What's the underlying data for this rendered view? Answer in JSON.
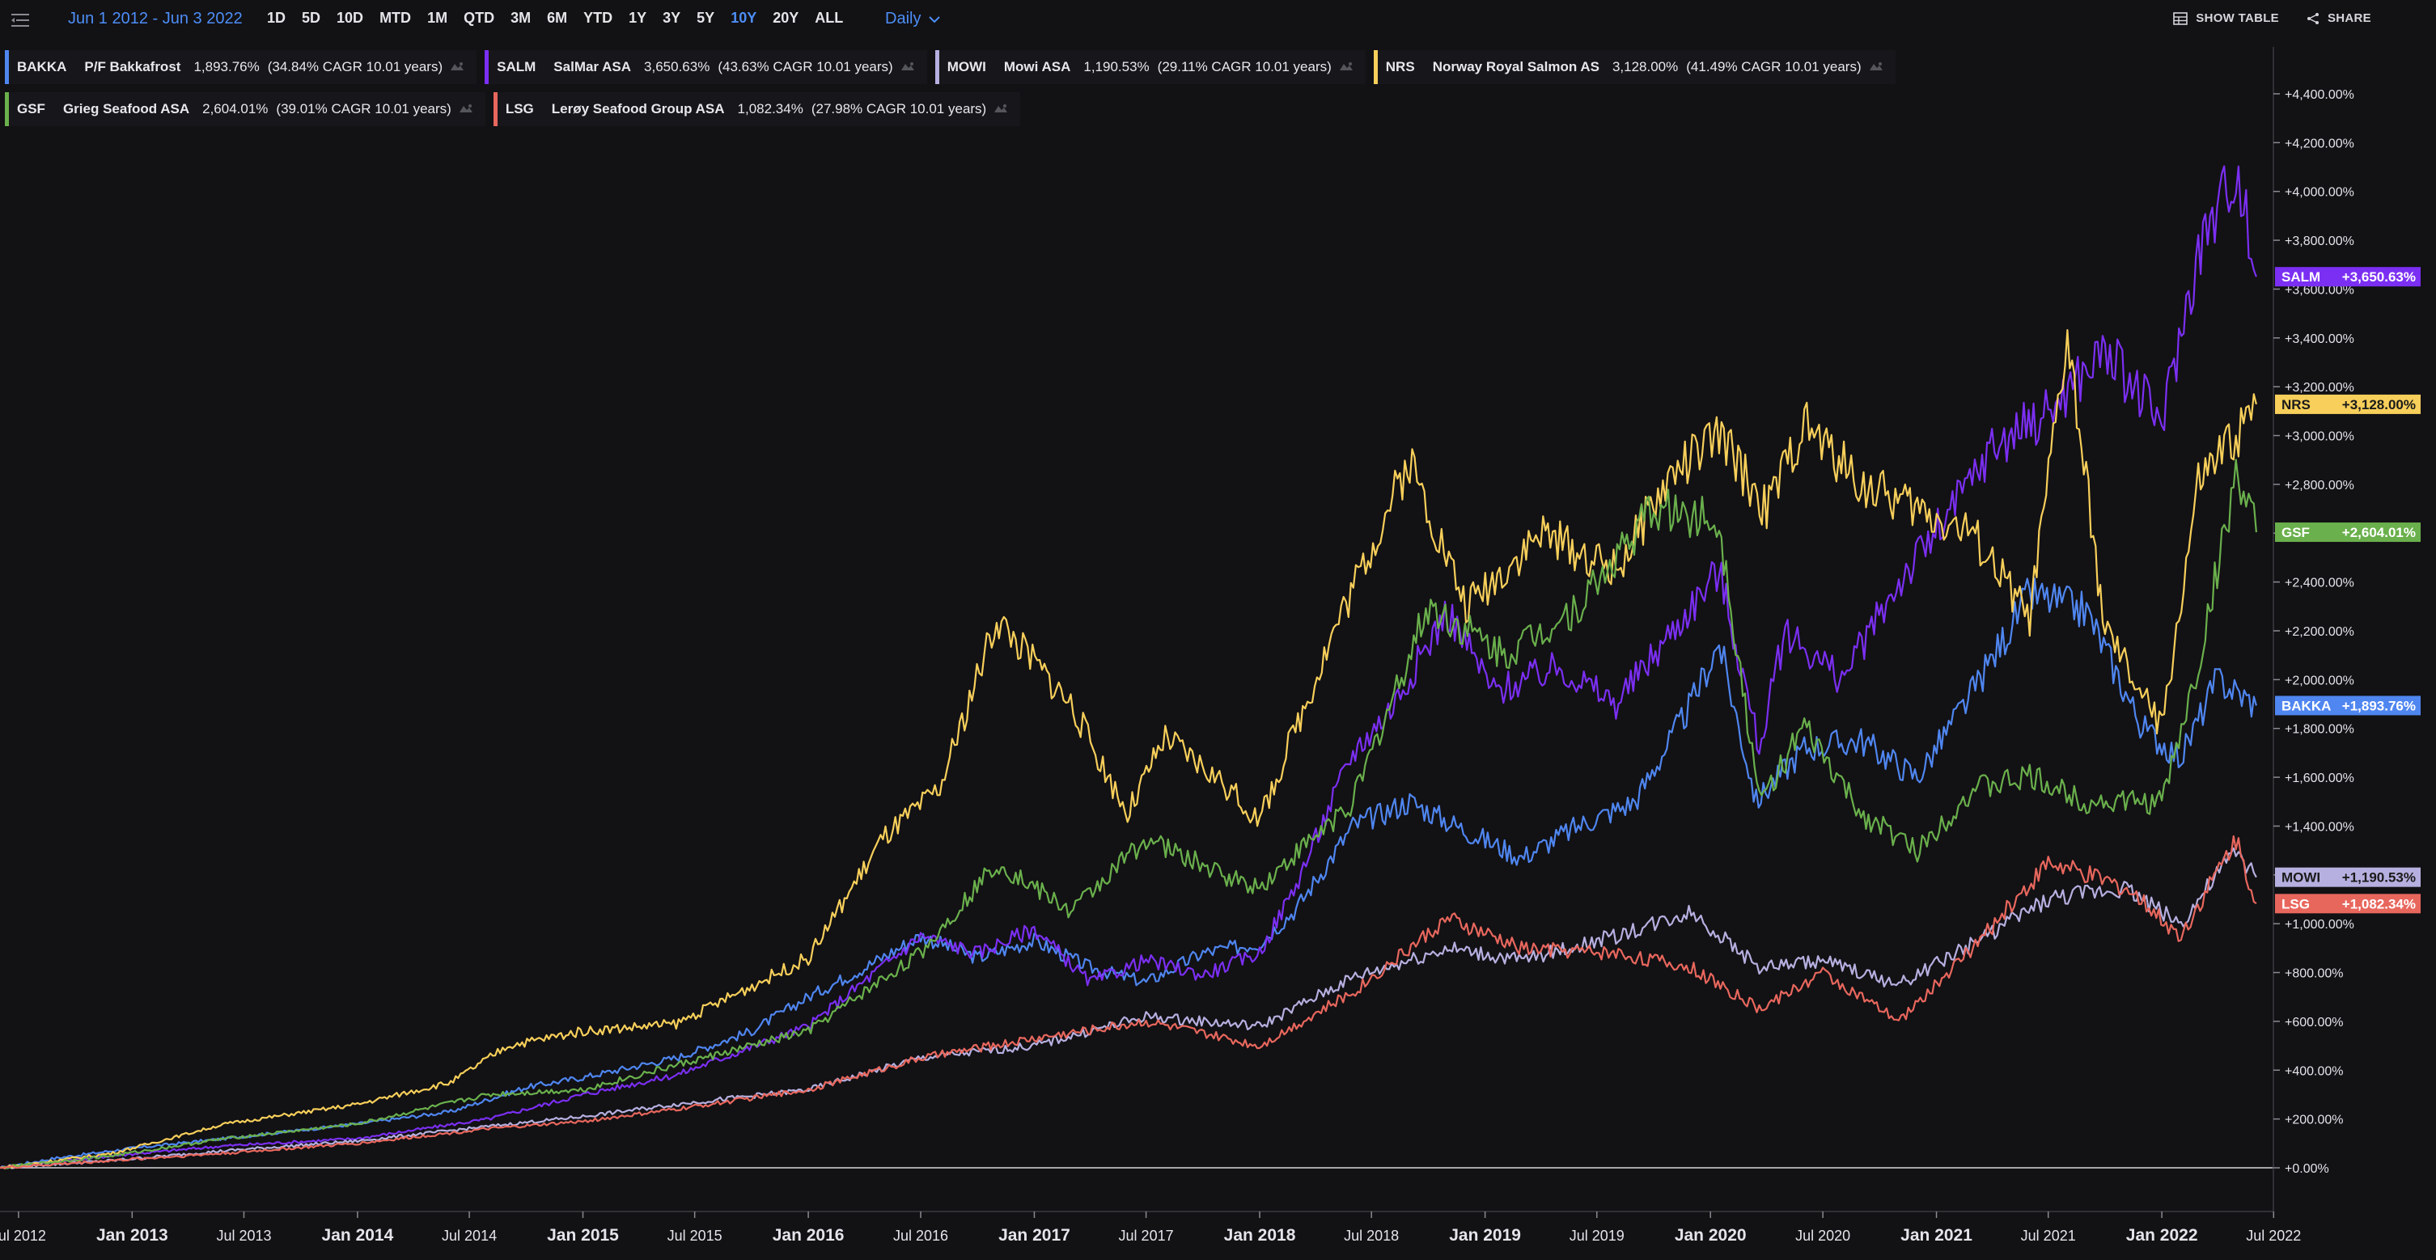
{
  "toolbar": {
    "date_range": "Jun 1 2012 - Jun 3 2022",
    "ranges": [
      "1D",
      "5D",
      "10D",
      "MTD",
      "1M",
      "QTD",
      "3M",
      "6M",
      "YTD",
      "1Y",
      "3Y",
      "5Y",
      "10Y",
      "20Y",
      "ALL"
    ],
    "active_range": "10Y",
    "interval": "Daily",
    "show_table": "SHOW TABLE",
    "share": "SHARE"
  },
  "legend": [
    {
      "symbol": "BAKKA",
      "name": "P/F Bakkafrost",
      "pct": "1,893.76%",
      "cagr": "(34.84% CAGR 10.01 years)",
      "color": "#4f86f0"
    },
    {
      "symbol": "SALM",
      "name": "SalMar ASA",
      "pct": "3,650.63%",
      "cagr": "(43.63% CAGR 10.01 years)",
      "color": "#7b2ff2"
    },
    {
      "symbol": "MOWI",
      "name": "Mowi ASA",
      "pct": "1,190.53%",
      "cagr": "(29.11% CAGR 10.01 years)",
      "color": "#b6b0e0"
    },
    {
      "symbol": "NRS",
      "name": "Norway Royal Salmon AS",
      "pct": "3,128.00%",
      "cagr": "(41.49% CAGR 10.01 years)",
      "color": "#f7cf5a"
    },
    {
      "symbol": "GSF",
      "name": "Grieg Seafood ASA",
      "pct": "2,604.01%",
      "cagr": "(39.01% CAGR 10.01 years)",
      "color": "#6ab04c"
    },
    {
      "symbol": "LSG",
      "name": "Lerøy Seafood Group ASA",
      "pct": "1,082.34%",
      "cagr": "(27.98% CAGR 10.01 years)",
      "color": "#e8675d"
    }
  ],
  "last_labels": [
    {
      "symbol": "SALM",
      "value": "+3,650.63%",
      "value_num": 3650.63,
      "color": "#7b2ff2",
      "text_color": "#ffffff"
    },
    {
      "symbol": "NRS",
      "value": "+3,128.00%",
      "value_num": 3128.0,
      "color": "#f7cf5a",
      "text_color": "#1a1a1a"
    },
    {
      "symbol": "GSF",
      "value": "+2,604.01%",
      "value_num": 2604.01,
      "color": "#6ab04c",
      "text_color": "#ffffff"
    },
    {
      "symbol": "BAKKA",
      "value": "+1,893.76%",
      "value_num": 1893.76,
      "color": "#4f86f0",
      "text_color": "#ffffff"
    },
    {
      "symbol": "MOWI",
      "value": "+1,190.53%",
      "value_num": 1190.53,
      "color": "#b6b0e0",
      "text_color": "#1a1a1a"
    },
    {
      "symbol": "LSG",
      "value": "+1,082.34%",
      "value_num": 1082.34,
      "color": "#e8675d",
      "text_color": "#ffffff"
    }
  ],
  "chart_data": {
    "type": "line",
    "ylim": [
      -100,
      4600
    ],
    "y_ticks": [
      "+0.00%",
      "+200.00%",
      "+400.00%",
      "+600.00%",
      "+800.00%",
      "+1,000.00%",
      "+1,200.00%",
      "+1,400.00%",
      "+1,600.00%",
      "+1,800.00%",
      "+2,000.00%",
      "+2,200.00%",
      "+2,400.00%",
      "+2,600.00%",
      "+2,800.00%",
      "+3,000.00%",
      "+3,200.00%",
      "+3,400.00%",
      "+3,600.00%",
      "+3,800.00%",
      "+4,000.00%",
      "+4,200.00%",
      "+4,400.00%"
    ],
    "y_tick_values": [
      0,
      200,
      400,
      600,
      800,
      1000,
      1200,
      1400,
      1600,
      1800,
      2000,
      2200,
      2400,
      2600,
      2800,
      3000,
      3200,
      3400,
      3600,
      3800,
      4000,
      4200,
      4400
    ],
    "x_range": [
      "2012-06-01",
      "2022-06-03"
    ],
    "x_ticks": [
      {
        "label": "Jul 2012",
        "date": "2012-07-01",
        "major": false
      },
      {
        "label": "Jan 2013",
        "date": "2013-01-01",
        "major": true
      },
      {
        "label": "Jul 2013",
        "date": "2013-07-01",
        "major": false
      },
      {
        "label": "Jan 2014",
        "date": "2014-01-01",
        "major": true
      },
      {
        "label": "Jul 2014",
        "date": "2014-07-01",
        "major": false
      },
      {
        "label": "Jan 2015",
        "date": "2015-01-01",
        "major": true
      },
      {
        "label": "Jul 2015",
        "date": "2015-07-01",
        "major": false
      },
      {
        "label": "Jan 2016",
        "date": "2016-01-01",
        "major": true
      },
      {
        "label": "Jul 2016",
        "date": "2016-07-01",
        "major": false
      },
      {
        "label": "Jan 2017",
        "date": "2017-01-01",
        "major": true
      },
      {
        "label": "Jul 2017",
        "date": "2017-07-01",
        "major": false
      },
      {
        "label": "Jan 2018",
        "date": "2018-01-01",
        "major": true
      },
      {
        "label": "Jul 2018",
        "date": "2018-07-01",
        "major": false
      },
      {
        "label": "Jan 2019",
        "date": "2019-01-01",
        "major": true
      },
      {
        "label": "Jul 2019",
        "date": "2019-07-01",
        "major": false
      },
      {
        "label": "Jan 2020",
        "date": "2020-01-01",
        "major": true
      },
      {
        "label": "Jul 2020",
        "date": "2020-07-01",
        "major": false
      },
      {
        "label": "Jan 2021",
        "date": "2021-01-01",
        "major": true
      },
      {
        "label": "Jul 2021",
        "date": "2021-07-01",
        "major": false
      },
      {
        "label": "Jan 2022",
        "date": "2022-01-01",
        "major": true
      },
      {
        "label": "Jul 2022",
        "date": "2022-07-01",
        "major": false
      }
    ],
    "series": [
      {
        "name": "BAKKA",
        "color": "#4f86f0",
        "points": [
          [
            "2012-06-01",
            0
          ],
          [
            "2012-09-01",
            40
          ],
          [
            "2013-01-01",
            80
          ],
          [
            "2013-06-01",
            120
          ],
          [
            "2014-01-01",
            180
          ],
          [
            "2014-06-01",
            230
          ],
          [
            "2014-10-01",
            330
          ],
          [
            "2015-01-01",
            370
          ],
          [
            "2015-06-01",
            450
          ],
          [
            "2015-10-01",
            560
          ],
          [
            "2016-01-01",
            700
          ],
          [
            "2016-04-01",
            820
          ],
          [
            "2016-07-01,",
            950
          ],
          [
            "2016-10-01",
            860
          ],
          [
            "2017-01-01",
            930
          ],
          [
            "2017-04-01",
            820
          ],
          [
            "2017-07-01",
            760
          ],
          [
            "2017-10-01",
            880
          ],
          [
            "2018-01-01",
            920
          ],
          [
            "2018-03-01",
            1060
          ],
          [
            "2018-06-01",
            1400
          ],
          [
            "2018-09-01",
            1500
          ],
          [
            "2018-12-01",
            1380
          ],
          [
            "2019-03-01",
            1270
          ],
          [
            "2019-06-01",
            1400
          ],
          [
            "2019-09-01",
            1500
          ],
          [
            "2019-12-01",
            1900
          ],
          [
            "2020-01-15",
            2150
          ],
          [
            "2020-03-15",
            1500
          ],
          [
            "2020-06-01",
            1720
          ],
          [
            "2020-09-01",
            1750
          ],
          [
            "2020-12-01",
            1600
          ],
          [
            "2021-03-01",
            1950
          ],
          [
            "2021-06-01",
            2350
          ],
          [
            "2021-09-01",
            2280
          ],
          [
            "2021-12-01",
            1800
          ],
          [
            "2022-02-01",
            1680
          ],
          [
            "2022-04-01",
            2000
          ],
          [
            "2022-06-03",
            1893.76
          ]
        ]
      },
      {
        "name": "SALM",
        "color": "#7b2ff2",
        "points": [
          [
            "2012-06-01",
            0
          ],
          [
            "2012-12-01",
            50
          ],
          [
            "2013-06-01",
            90
          ],
          [
            "2014-01-01",
            120
          ],
          [
            "2014-08-01",
            200
          ],
          [
            "2015-01-01",
            300
          ],
          [
            "2015-06-01",
            380
          ],
          [
            "2016-01-01",
            580
          ],
          [
            "2016-07-01",
            950
          ],
          [
            "2016-10-01",
            880
          ],
          [
            "2017-01-01",
            980
          ],
          [
            "2017-04-01",
            760
          ],
          [
            "2017-07-01",
            850
          ],
          [
            "2017-10-01",
            790
          ],
          [
            "2018-01-01",
            880
          ],
          [
            "2018-03-01",
            1160
          ],
          [
            "2018-06-01",
            1700
          ],
          [
            "2018-08-01",
            1880
          ],
          [
            "2018-11-01",
            2280
          ],
          [
            "2019-01-15",
            1950
          ],
          [
            "2019-05-01",
            2050
          ],
          [
            "2019-08-01",
            1900
          ],
          [
            "2019-11-01",
            2200
          ],
          [
            "2020-01-15",
            2450
          ],
          [
            "2020-03-20",
            1720
          ],
          [
            "2020-05-01",
            2200
          ],
          [
            "2020-08-01",
            2000
          ],
          [
            "2020-11-01",
            2400
          ],
          [
            "2021-01-15",
            2650
          ],
          [
            "2021-04-01",
            2950
          ],
          [
            "2021-07-01",
            3100
          ],
          [
            "2021-10-01",
            3350
          ],
          [
            "2022-01-01",
            3050
          ],
          [
            "2022-03-01",
            3750
          ],
          [
            "2022-05-01",
            4100
          ],
          [
            "2022-06-03",
            3650.63
          ]
        ]
      },
      {
        "name": "MOWI",
        "color": "#b6b0e0",
        "points": [
          [
            "2012-06-01",
            0
          ],
          [
            "2012-12-01",
            30
          ],
          [
            "2013-06-01",
            70
          ],
          [
            "2014-01-01",
            110
          ],
          [
            "2014-08-01",
            170
          ],
          [
            "2015-01-01",
            210
          ],
          [
            "2015-06-01",
            260
          ],
          [
            "2016-01-01",
            320
          ],
          [
            "2016-07-01",
            450
          ],
          [
            "2017-01-01",
            500
          ],
          [
            "2017-07-01",
            620
          ],
          [
            "2018-01-01",
            580
          ],
          [
            "2018-06-01",
            780
          ],
          [
            "2018-11-01",
            900
          ],
          [
            "2019-03-01",
            850
          ],
          [
            "2019-08-01",
            950
          ],
          [
            "2019-12-01",
            1050
          ],
          [
            "2020-03-20",
            820
          ],
          [
            "2020-07-01",
            850
          ],
          [
            "2020-11-01",
            750
          ],
          [
            "2021-03-01",
            920
          ],
          [
            "2021-07-01",
            1100
          ],
          [
            "2021-11-01",
            1150
          ],
          [
            "2022-02-01",
            1000
          ],
          [
            "2022-05-01",
            1300
          ],
          [
            "2022-06-03",
            1190.53
          ]
        ]
      },
      {
        "name": "NRS",
        "color": "#f7cf5a",
        "points": [
          [
            "2012-06-01",
            0
          ],
          [
            "2012-12-01",
            60
          ],
          [
            "2013-06-01",
            180
          ],
          [
            "2014-01-01",
            260
          ],
          [
            "2014-06-01",
            350
          ],
          [
            "2014-09-01",
            500
          ],
          [
            "2015-01-01",
            560
          ],
          [
            "2015-06-01",
            590
          ],
          [
            "2016-01-01",
            860
          ],
          [
            "2016-05-01",
            1350
          ],
          [
            "2016-08-01",
            1550
          ],
          [
            "2016-11-01",
            2250
          ],
          [
            "2017-03-01",
            1900
          ],
          [
            "2017-06-01",
            1450
          ],
          [
            "2017-08-01",
            1760
          ],
          [
            "2017-11-01",
            1580
          ],
          [
            "2018-01-01",
            1420
          ],
          [
            "2018-05-01",
            2200
          ],
          [
            "2018-09-01",
            2900
          ],
          [
            "2018-12-01",
            2300
          ],
          [
            "2019-04-01",
            2600
          ],
          [
            "2019-08-01",
            2450
          ],
          [
            "2019-11-01",
            2850
          ],
          [
            "2020-01-15",
            3000
          ],
          [
            "2020-04-01",
            2700
          ],
          [
            "2020-06-01",
            3050
          ],
          [
            "2020-09-01",
            2800
          ],
          [
            "2020-12-01",
            2700
          ],
          [
            "2021-03-01",
            2600
          ],
          [
            "2021-06-01",
            2250
          ],
          [
            "2021-08-01",
            3400
          ],
          [
            "2021-10-01",
            2200
          ],
          [
            "2022-01-01",
            1800
          ],
          [
            "2022-03-01",
            2800
          ],
          [
            "2022-05-01",
            3000
          ],
          [
            "2022-06-03",
            3128.0
          ]
        ]
      },
      {
        "name": "GSF",
        "color": "#6ab04c",
        "points": [
          [
            "2012-06-01",
            0
          ],
          [
            "2012-12-01",
            50
          ],
          [
            "2013-06-01",
            120
          ],
          [
            "2014-01-01",
            180
          ],
          [
            "2014-08-01",
            300
          ],
          [
            "2015-01-01",
            320
          ],
          [
            "2015-06-01",
            420
          ],
          [
            "2016-01-01",
            560
          ],
          [
            "2016-07-01",
            880
          ],
          [
            "2016-11-01",
            1250
          ],
          [
            "2017-03-01",
            1050
          ],
          [
            "2017-07-01",
            1350
          ],
          [
            "2017-11-01",
            1200
          ],
          [
            "2018-01-01",
            1150
          ],
          [
            "2018-06-01",
            1500
          ],
          [
            "2018-10-01",
            2300
          ],
          [
            "2019-02-01",
            2100
          ],
          [
            "2019-06-01",
            2300
          ],
          [
            "2019-10-01",
            2700
          ],
          [
            "2020-01-15",
            2650
          ],
          [
            "2020-03-20",
            1500
          ],
          [
            "2020-06-01",
            1800
          ],
          [
            "2020-09-01",
            1450
          ],
          [
            "2020-12-01",
            1300
          ],
          [
            "2021-03-01",
            1550
          ],
          [
            "2021-06-01",
            1600
          ],
          [
            "2021-09-01",
            1500
          ],
          [
            "2022-01-01",
            1500
          ],
          [
            "2022-03-01",
            2050
          ],
          [
            "2022-05-01",
            2850
          ],
          [
            "2022-06-03",
            2604.01
          ]
        ]
      },
      {
        "name": "LSG",
        "color": "#e8675d",
        "points": [
          [
            "2012-06-01",
            0
          ],
          [
            "2012-12-01",
            30
          ],
          [
            "2013-06-01",
            60
          ],
          [
            "2014-01-01",
            100
          ],
          [
            "2014-08-01",
            160
          ],
          [
            "2015-01-01",
            190
          ],
          [
            "2015-06-01",
            240
          ],
          [
            "2016-01-01",
            320
          ],
          [
            "2016-07-01",
            450
          ],
          [
            "2017-01-01",
            530
          ],
          [
            "2017-07-01",
            600
          ],
          [
            "2018-01-01",
            500
          ],
          [
            "2018-06-01",
            720
          ],
          [
            "2018-11-01",
            1020
          ],
          [
            "2019-03-01",
            900
          ],
          [
            "2019-08-01",
            880
          ],
          [
            "2019-12-01",
            820
          ],
          [
            "2020-03-20",
            650
          ],
          [
            "2020-07-01",
            800
          ],
          [
            "2020-11-01",
            600
          ],
          [
            "2021-03-01",
            900
          ],
          [
            "2021-07-01",
            1250
          ],
          [
            "2021-11-01",
            1150
          ],
          [
            "2022-02-01",
            950
          ],
          [
            "2022-05-01",
            1350
          ],
          [
            "2022-06-03",
            1082.34
          ]
        ]
      }
    ]
  }
}
